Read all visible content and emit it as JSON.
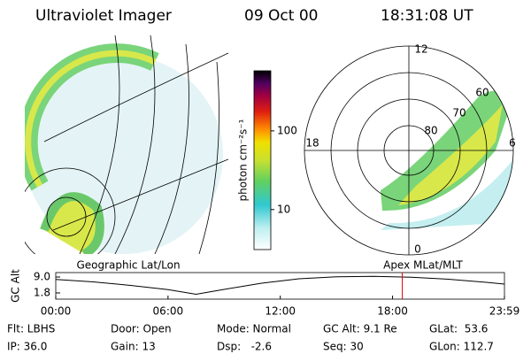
{
  "header": {
    "title": "Ultraviolet Imager",
    "date": "09 Oct 00",
    "time": "18:31:08 UT"
  },
  "panels": {
    "left_label": "Geographic Lat/Lon",
    "right_label": "Apex MLat/MLT",
    "polar_labels": {
      "top": "12",
      "left": "18",
      "right": "6",
      "bottom": "0",
      "ring_80": "80",
      "ring_70": "70",
      "ring_60": "60"
    }
  },
  "colorbar": {
    "label": "photon cm⁻²s⁻¹",
    "log": true,
    "lim": [
      3.1,
      580
    ],
    "ticks": [
      10,
      100
    ]
  },
  "chart_data": {
    "type": "line",
    "ylabel": "GC Alt",
    "color": "#000000",
    "x": [
      0,
      2,
      4,
      6,
      7.5,
      9,
      11,
      13,
      15,
      17,
      19,
      21,
      23,
      23.98
    ],
    "values": [
      7.9,
      6.8,
      5.2,
      3.3,
      1.2,
      3.4,
      6.2,
      8.2,
      9.1,
      9.3,
      8.9,
      8.0,
      6.6,
      5.8
    ],
    "xlim": [
      0,
      23.98
    ],
    "xticks": [
      {
        "value": 0,
        "label": "00:00"
      },
      {
        "value": 6,
        "label": "06:00"
      },
      {
        "value": 12,
        "label": "12:00"
      },
      {
        "value": 18,
        "label": "18:00"
      },
      {
        "value": 23.98,
        "label": "23:59"
      }
    ],
    "ylim": [
      -1,
      11
    ],
    "yticks": [
      {
        "value": 9,
        "label": "9.0"
      },
      {
        "value": 1.8,
        "label": "1.8"
      }
    ],
    "marker_x": 18.52,
    "marker_color": "#e00000"
  },
  "info": [
    [
      "Flt: LBHS",
      "Door: Open",
      "Mode: Normal",
      "GC Alt: 9.1 Re",
      "GLat:  53.6"
    ],
    [
      "IP: 36.0",
      "Gain: 13",
      "Dsp:   -2.6",
      "Seq: 30",
      "GLon: 112.7"
    ]
  ]
}
